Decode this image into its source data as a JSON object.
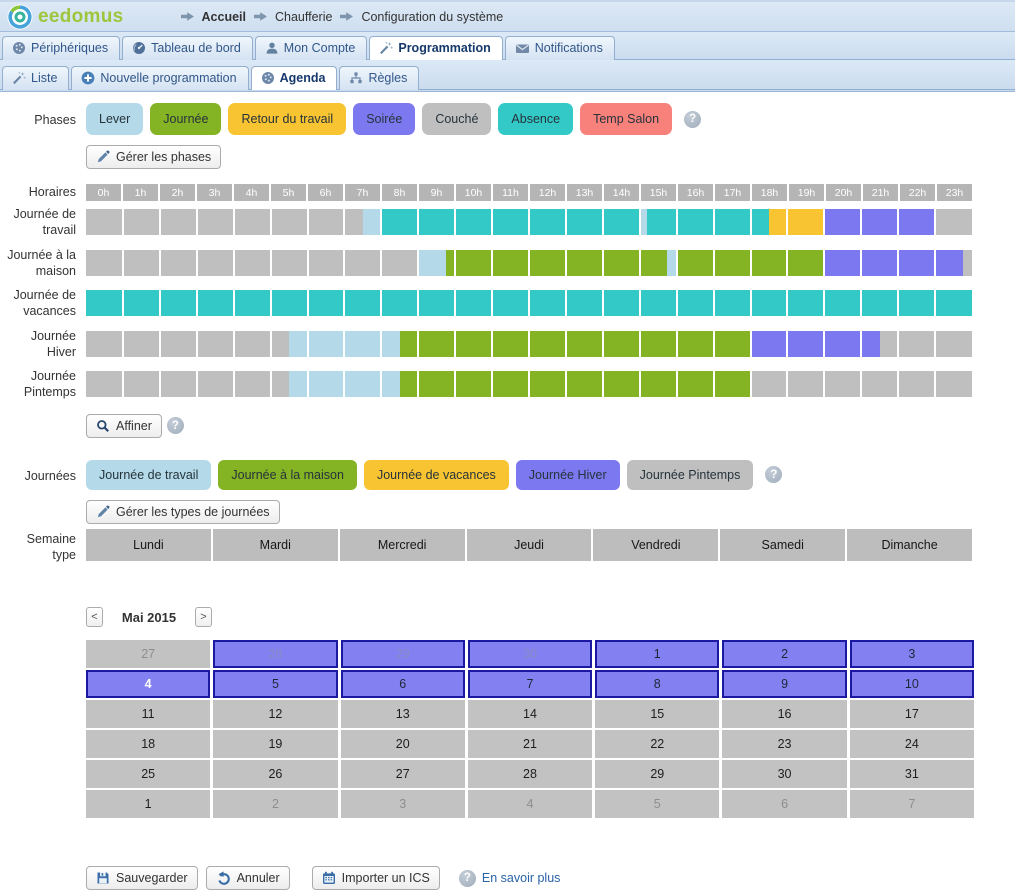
{
  "ui": {
    "help_glyph": "?"
  },
  "header": {
    "logo_text": "eedomus",
    "breadcrumb": [
      "Accueil",
      "Chaufferie",
      "Configuration du système"
    ]
  },
  "main_tabs": [
    {
      "label": "Périphériques",
      "icon": "sphere",
      "active": false
    },
    {
      "label": "Tableau de bord",
      "icon": "gauge",
      "active": false
    },
    {
      "label": "Mon Compte",
      "icon": "person",
      "active": false
    },
    {
      "label": "Programmation",
      "icon": "wand",
      "active": true
    },
    {
      "label": "Notifications",
      "icon": "envelope",
      "active": false
    }
  ],
  "sub_tabs": [
    {
      "label": "Liste",
      "icon": "wand",
      "active": false
    },
    {
      "label": "Nouvelle programmation",
      "icon": "plus",
      "active": false
    },
    {
      "label": "Agenda",
      "icon": "sphere",
      "active": true
    },
    {
      "label": "Règles",
      "icon": "hierarchy",
      "active": false
    }
  ],
  "colors": {
    "lever": "#B4DAE9",
    "journee": "#84B324",
    "retour": "#F9C431",
    "soiree": "#7C78F0",
    "couche": "#BFBFBF",
    "absence": "#33C9C7",
    "temp_salon": "#F9817C"
  },
  "phases": {
    "label": "Phases",
    "items": [
      {
        "label": "Lever",
        "color_key": "lever"
      },
      {
        "label": "Journée",
        "color_key": "journee"
      },
      {
        "label": "Retour du travail",
        "color_key": "retour"
      },
      {
        "label": "Soirée",
        "color_key": "soiree"
      },
      {
        "label": "Couché",
        "color_key": "couche"
      },
      {
        "label": "Absence",
        "color_key": "absence"
      },
      {
        "label": "Temp Salon",
        "color_key": "temp_salon"
      }
    ],
    "manage_label": "Gérer les phases"
  },
  "schedule": {
    "label": "Horaires",
    "hour_labels": [
      "0h",
      "1h",
      "2h",
      "3h",
      "4h",
      "5h",
      "6h",
      "7h",
      "8h",
      "9h",
      "10h",
      "11h",
      "12h",
      "13h",
      "14h",
      "15h",
      "16h",
      "17h",
      "18h",
      "19h",
      "20h",
      "21h",
      "22h",
      "23h"
    ],
    "refine_label": "Affiner",
    "rows": [
      {
        "label": "Journée de travail",
        "segments": [
          [
            0,
            7.5,
            "couche"
          ],
          [
            7.5,
            8,
            "lever"
          ],
          [
            8,
            15,
            "absence"
          ],
          [
            15,
            15.2,
            "lever"
          ],
          [
            15.2,
            18.5,
            "absence"
          ],
          [
            18.5,
            20,
            "retour"
          ],
          [
            20,
            23,
            "soiree"
          ],
          [
            23,
            24,
            "couche"
          ]
        ]
      },
      {
        "label": "Journée à la maison",
        "segments": [
          [
            0,
            9,
            "couche"
          ],
          [
            9,
            9.75,
            "lever"
          ],
          [
            9.75,
            15.75,
            "journee"
          ],
          [
            15.75,
            16,
            "lever"
          ],
          [
            16,
            20,
            "journee"
          ],
          [
            20,
            23.75,
            "soiree"
          ],
          [
            23.75,
            24,
            "couche"
          ]
        ]
      },
      {
        "label": "Journée de vacances",
        "segments": [
          [
            0,
            24,
            "absence"
          ]
        ]
      },
      {
        "label": "Journée Hiver",
        "segments": [
          [
            0,
            5.5,
            "couche"
          ],
          [
            5.5,
            8.5,
            "lever"
          ],
          [
            8.5,
            18,
            "journee"
          ],
          [
            18,
            21.5,
            "soiree"
          ],
          [
            21.5,
            24,
            "couche"
          ]
        ]
      },
      {
        "label": "Journée Pintemps",
        "segments": [
          [
            0,
            5.5,
            "couche"
          ],
          [
            5.5,
            8.5,
            "lever"
          ],
          [
            8.5,
            18,
            "journee"
          ],
          [
            18,
            24,
            "couche"
          ]
        ]
      }
    ]
  },
  "day_types": {
    "label": "Journées",
    "items": [
      {
        "label": "Journée de travail",
        "color_key": "lever"
      },
      {
        "label": "Journée à la maison",
        "color_key": "journee"
      },
      {
        "label": "Journée de vacances",
        "color_key": "retour"
      },
      {
        "label": "Journée Hiver",
        "color_key": "soiree"
      },
      {
        "label": "Journée Pintemps",
        "color_key": "couche"
      }
    ],
    "manage_label": "Gérer les types de journées"
  },
  "week_template": {
    "label": "Semaine type",
    "days": [
      "Lundi",
      "Mardi",
      "Mercredi",
      "Jeudi",
      "Vendredi",
      "Samedi",
      "Dimanche"
    ]
  },
  "calendar": {
    "prev_label": "<",
    "next_label": ">",
    "month_label": "Mai 2015",
    "weeks": [
      [
        {
          "day": "27",
          "variant": "gray",
          "muted": true
        },
        {
          "day": "28",
          "variant": "purple",
          "muted": true
        },
        {
          "day": "29",
          "variant": "purple",
          "muted": true
        },
        {
          "day": "30",
          "variant": "purple",
          "muted": true
        },
        {
          "day": "1",
          "variant": "purple"
        },
        {
          "day": "2",
          "variant": "purple"
        },
        {
          "day": "3",
          "variant": "purple"
        }
      ],
      [
        {
          "day": "4",
          "variant": "purple",
          "today": true
        },
        {
          "day": "5",
          "variant": "purple"
        },
        {
          "day": "6",
          "variant": "purple"
        },
        {
          "day": "7",
          "variant": "purple"
        },
        {
          "day": "8",
          "variant": "purple"
        },
        {
          "day": "9",
          "variant": "purple"
        },
        {
          "day": "10",
          "variant": "purple"
        }
      ],
      [
        {
          "day": "11",
          "variant": "gray"
        },
        {
          "day": "12",
          "variant": "gray"
        },
        {
          "day": "13",
          "variant": "gray"
        },
        {
          "day": "14",
          "variant": "gray"
        },
        {
          "day": "15",
          "variant": "gray"
        },
        {
          "day": "16",
          "variant": "gray"
        },
        {
          "day": "17",
          "variant": "gray"
        }
      ],
      [
        {
          "day": "18",
          "variant": "gray"
        },
        {
          "day": "19",
          "variant": "gray"
        },
        {
          "day": "20",
          "variant": "gray"
        },
        {
          "day": "21",
          "variant": "gray"
        },
        {
          "day": "22",
          "variant": "gray"
        },
        {
          "day": "23",
          "variant": "gray"
        },
        {
          "day": "24",
          "variant": "gray"
        }
      ],
      [
        {
          "day": "25",
          "variant": "gray"
        },
        {
          "day": "26",
          "variant": "gray"
        },
        {
          "day": "27",
          "variant": "gray"
        },
        {
          "day": "28",
          "variant": "gray"
        },
        {
          "day": "29",
          "variant": "gray"
        },
        {
          "day": "30",
          "variant": "gray"
        },
        {
          "day": "31",
          "variant": "gray"
        }
      ],
      [
        {
          "day": "1",
          "variant": "gray"
        },
        {
          "day": "2",
          "variant": "gray",
          "muted": true
        },
        {
          "day": "3",
          "variant": "gray",
          "muted": true
        },
        {
          "day": "4",
          "variant": "gray",
          "muted": true
        },
        {
          "day": "5",
          "variant": "gray",
          "muted": true
        },
        {
          "day": "6",
          "variant": "gray",
          "muted": true
        },
        {
          "day": "7",
          "variant": "gray",
          "muted": true
        }
      ]
    ]
  },
  "footer": {
    "save_label": "Sauvegarder",
    "cancel_label": "Annuler",
    "import_label": "Importer un ICS",
    "more_label": "En savoir plus"
  }
}
